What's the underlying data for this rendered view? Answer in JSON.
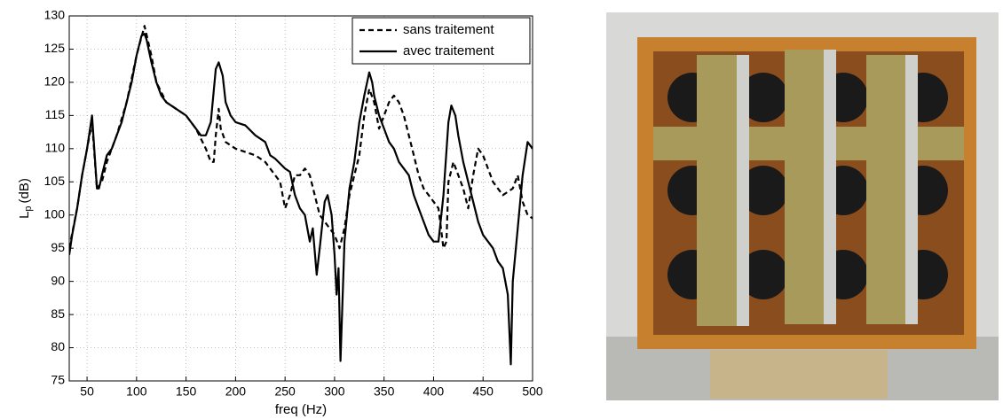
{
  "chart_data": {
    "type": "line",
    "xlabel": "freq (Hz)",
    "ylabel": [
      "L",
      "p",
      "(dB)"
    ],
    "xlim": [
      32,
      500
    ],
    "ylim": [
      75,
      130
    ],
    "xticks": [
      50,
      100,
      150,
      200,
      250,
      300,
      350,
      400,
      450,
      500
    ],
    "yticks": [
      75,
      80,
      85,
      90,
      95,
      100,
      105,
      110,
      115,
      120,
      125,
      130
    ],
    "grid": true,
    "legend": "upper right",
    "series": [
      {
        "name": "sans traitement",
        "color": "#000000",
        "dash": true,
        "x": [
          32,
          40,
          45,
          50,
          55,
          60,
          65,
          70,
          80,
          90,
          100,
          108,
          115,
          120,
          130,
          140,
          150,
          160,
          170,
          175,
          178,
          180,
          183,
          185,
          190,
          200,
          210,
          220,
          230,
          240,
          245,
          250,
          255,
          260,
          265,
          270,
          275,
          280,
          285,
          290,
          295,
          300,
          305,
          310,
          315,
          320,
          325,
          330,
          335,
          340,
          345,
          350,
          355,
          360,
          365,
          370,
          375,
          380,
          385,
          390,
          400,
          405,
          410,
          413,
          415,
          420,
          425,
          430,
          435,
          440,
          445,
          450,
          455,
          460,
          470,
          480,
          485,
          490,
          495,
          500
        ],
        "values": [
          95,
          101,
          106,
          110,
          114,
          104,
          105,
          108,
          112,
          117,
          124,
          128.5,
          124,
          120,
          117,
          116,
          115,
          113,
          110,
          108,
          108,
          112,
          116,
          113,
          111,
          110,
          109.5,
          109,
          108,
          106,
          105,
          101,
          103,
          106,
          106,
          107,
          106,
          103,
          100,
          99,
          98,
          97,
          95,
          98,
          103,
          106,
          109,
          115,
          119,
          117,
          113,
          115,
          117,
          118,
          117,
          115,
          112,
          109,
          106,
          104,
          102,
          101,
          95,
          96,
          105,
          108,
          106,
          104,
          101,
          106,
          110,
          109,
          107,
          105,
          103,
          104,
          106,
          102,
          100,
          99.5
        ]
      },
      {
        "name": "avec traitement",
        "color": "#000000",
        "dash": false,
        "x": [
          32,
          35,
          40,
          45,
          50,
          55,
          60,
          62,
          65,
          70,
          75,
          80,
          85,
          90,
          95,
          100,
          105,
          108,
          110,
          115,
          120,
          125,
          130,
          140,
          150,
          160,
          165,
          170,
          175,
          180,
          183,
          187,
          190,
          195,
          200,
          210,
          220,
          230,
          235,
          240,
          250,
          255,
          260,
          265,
          270,
          275,
          278,
          282,
          285,
          290,
          293,
          297,
          300,
          302,
          304,
          306,
          310,
          315,
          320,
          325,
          330,
          335,
          338,
          340,
          345,
          350,
          355,
          360,
          365,
          370,
          375,
          380,
          385,
          390,
          395,
          400,
          405,
          410,
          415,
          418,
          422,
          425,
          430,
          435,
          440,
          445,
          450,
          455,
          460,
          465,
          470,
          475,
          478,
          480,
          485,
          490,
          495,
          500
        ],
        "values": [
          94,
          97,
          101,
          106,
          110,
          115,
          104,
          104,
          106,
          109,
          110,
          112,
          114,
          117,
          120,
          124,
          127,
          127.3,
          126.5,
          123,
          120,
          118,
          117,
          116,
          115,
          113,
          112,
          112,
          114,
          122,
          123,
          121,
          117,
          115,
          114,
          113.5,
          112,
          111,
          109,
          108.5,
          107,
          106.5,
          103,
          101,
          100,
          96,
          98,
          91,
          95,
          102,
          103,
          100,
          94,
          88,
          92,
          78,
          96,
          104,
          108,
          114,
          118,
          121.5,
          120,
          118,
          115,
          113,
          111,
          110,
          108,
          107,
          106,
          103,
          101,
          99,
          97,
          96,
          96,
          103,
          114,
          116.5,
          115,
          112,
          108,
          105,
          102,
          99,
          97,
          96,
          95,
          93,
          92,
          88,
          77.5,
          90,
          98,
          106,
          111,
          110
        ]
      }
    ]
  }
}
